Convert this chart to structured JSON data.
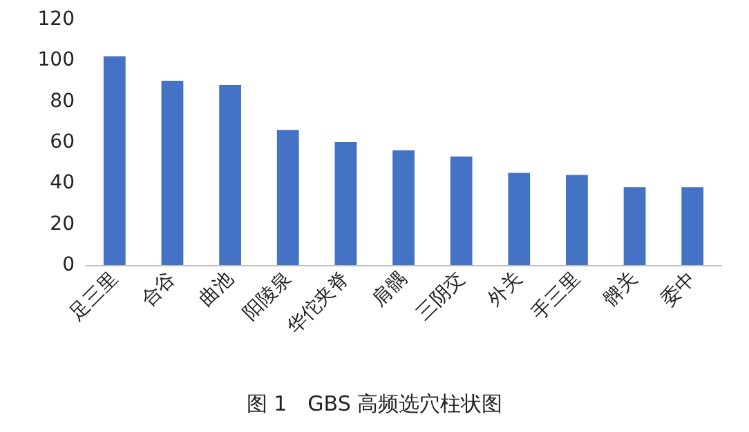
{
  "chart_data": {
    "type": "bar",
    "title": "图 1　GBS 高频选穴柱状图",
    "categories": [
      "足三里",
      "合谷",
      "曲池",
      "阳陵泉",
      "华佗夹脊",
      "肩髃",
      "三阴交",
      "外关",
      "手三里",
      "髀关",
      "委中"
    ],
    "values": [
      102,
      90,
      88,
      66,
      60,
      56,
      53,
      45,
      44,
      38,
      38
    ],
    "color": "#4472c4",
    "ylim": [
      0,
      120
    ],
    "yticks": [
      0,
      20,
      40,
      60,
      80,
      100,
      120
    ],
    "grid": false
  }
}
